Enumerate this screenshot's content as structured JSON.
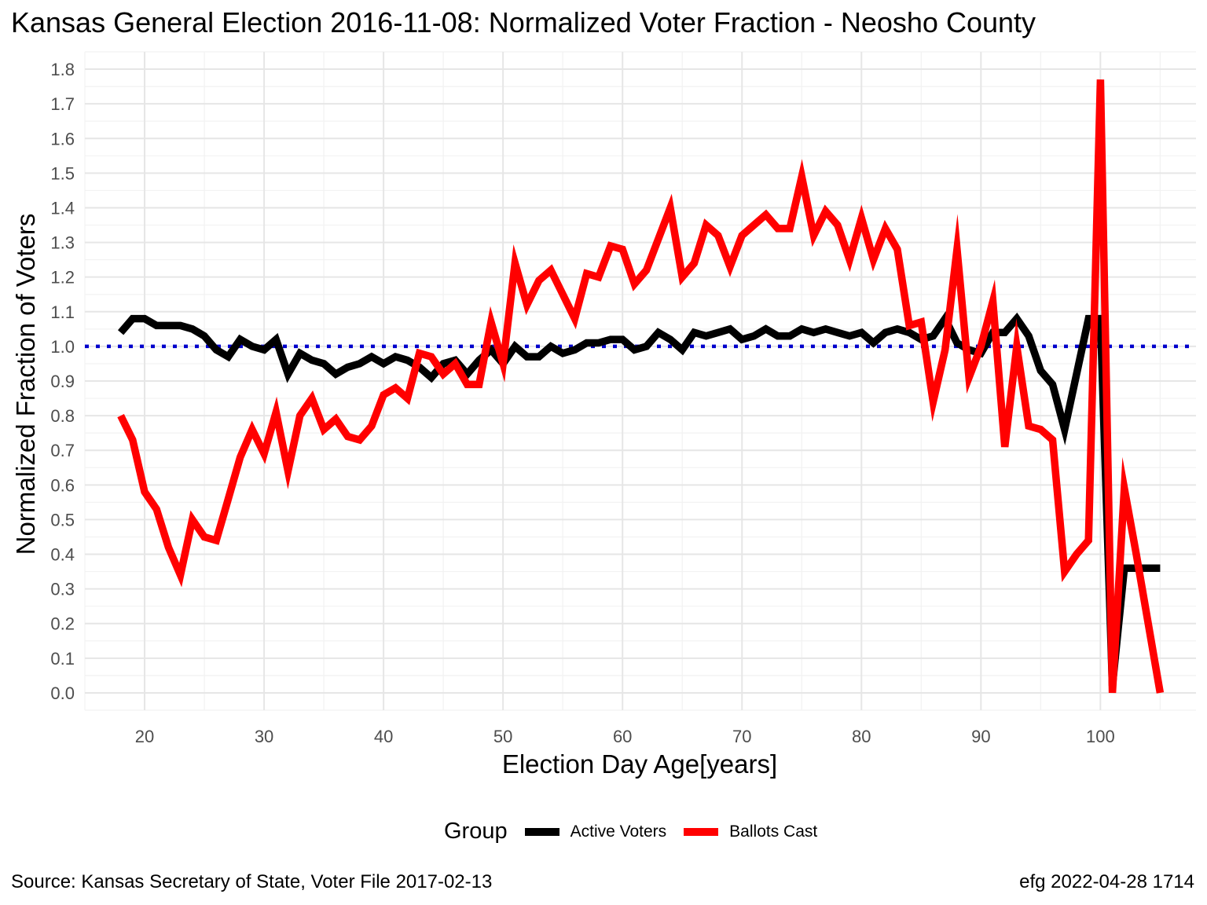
{
  "chart_data": {
    "type": "line",
    "title": "Kansas General Election 2016-11-08:  Normalized Voter Fraction - Neosho County",
    "xlabel": "Election Day Age[years]",
    "ylabel": "Normalized Fraction of Voters",
    "xlim": [
      15,
      108
    ],
    "ylim": [
      -0.05,
      1.85
    ],
    "x_ticks": [
      20,
      30,
      40,
      50,
      60,
      70,
      80,
      90,
      100
    ],
    "y_ticks": [
      0.0,
      0.1,
      0.2,
      0.3,
      0.4,
      0.5,
      0.6,
      0.7,
      0.8,
      0.9,
      1.0,
      1.1,
      1.2,
      1.3,
      1.4,
      1.5,
      1.6,
      1.7,
      1.8
    ],
    "y_tick_labels": [
      "0.0",
      "0.1",
      "0.2",
      "0.3",
      "0.4",
      "0.5",
      "0.6",
      "0.7",
      "0.8",
      "0.9",
      "1.0",
      "1.1",
      "1.2",
      "1.3",
      "1.4",
      "1.5",
      "1.6",
      "1.7",
      "1.8"
    ],
    "grid": true,
    "reference_line": {
      "y": 1.0,
      "color": "#0000cc",
      "style": "dotted"
    },
    "legend": {
      "title": "Group",
      "position": "bottom"
    },
    "x": [
      18,
      19,
      20,
      21,
      22,
      23,
      24,
      25,
      26,
      27,
      28,
      29,
      30,
      31,
      32,
      33,
      34,
      35,
      36,
      37,
      38,
      39,
      40,
      41,
      42,
      43,
      44,
      45,
      46,
      47,
      48,
      49,
      50,
      51,
      52,
      53,
      54,
      55,
      56,
      57,
      58,
      59,
      60,
      61,
      62,
      63,
      64,
      65,
      66,
      67,
      68,
      69,
      70,
      71,
      72,
      73,
      74,
      75,
      76,
      77,
      78,
      79,
      80,
      81,
      82,
      83,
      84,
      85,
      86,
      87,
      88,
      89,
      90,
      91,
      92,
      93,
      94,
      95,
      96,
      97,
      98,
      99,
      100,
      101,
      102,
      103,
      104,
      105
    ],
    "series": [
      {
        "name": "Active Voters",
        "color": "#000000",
        "values": [
          1.04,
          1.08,
          1.08,
          1.06,
          1.06,
          1.06,
          1.05,
          1.03,
          0.99,
          0.97,
          1.02,
          1.0,
          0.99,
          1.02,
          0.92,
          0.98,
          0.96,
          0.95,
          0.92,
          0.94,
          0.95,
          0.97,
          0.95,
          0.97,
          0.96,
          0.94,
          0.91,
          0.95,
          0.96,
          0.92,
          0.96,
          0.99,
          0.95,
          1.0,
          0.97,
          0.97,
          1.0,
          0.98,
          0.99,
          1.01,
          1.01,
          1.02,
          1.02,
          0.99,
          1.0,
          1.04,
          1.02,
          0.99,
          1.04,
          1.03,
          1.04,
          1.05,
          1.02,
          1.03,
          1.05,
          1.03,
          1.03,
          1.05,
          1.04,
          1.05,
          1.04,
          1.03,
          1.04,
          1.01,
          1.04,
          1.05,
          1.04,
          1.02,
          1.03,
          1.08,
          1.01,
          0.99,
          0.98,
          1.04,
          1.04,
          1.08,
          1.03,
          0.93,
          0.89,
          0.76,
          0.92,
          1.08,
          1.08,
          0.02,
          0.36,
          0.36,
          0.36,
          0.36
        ]
      },
      {
        "name": "Ballots Cast",
        "color": "#ff0000",
        "values": [
          0.8,
          0.73,
          0.58,
          0.53,
          0.42,
          0.34,
          0.5,
          0.45,
          0.44,
          0.56,
          0.68,
          0.76,
          0.69,
          0.81,
          0.64,
          0.8,
          0.85,
          0.76,
          0.79,
          0.74,
          0.73,
          0.77,
          0.86,
          0.88,
          0.85,
          0.98,
          0.97,
          0.92,
          0.95,
          0.89,
          0.89,
          1.07,
          0.95,
          1.24,
          1.12,
          1.19,
          1.22,
          1.15,
          1.08,
          1.21,
          1.2,
          1.29,
          1.28,
          1.18,
          1.22,
          1.31,
          1.4,
          1.2,
          1.24,
          1.35,
          1.32,
          1.23,
          1.32,
          1.35,
          1.38,
          1.34,
          1.34,
          1.49,
          1.32,
          1.39,
          1.35,
          1.25,
          1.37,
          1.25,
          1.34,
          1.28,
          1.06,
          1.07,
          0.84,
          0.99,
          1.28,
          0.91,
          1.0,
          1.13,
          0.71,
          1.0,
          0.77,
          0.76,
          0.73,
          0.35,
          0.4,
          0.44,
          1.77,
          0.0,
          0.59,
          0.4,
          0.2,
          0.0
        ]
      }
    ]
  },
  "caption_left": "Source:  Kansas Secretary of State, Voter File  2017-02-13",
  "caption_right": "efg 2022-04-28 1714"
}
